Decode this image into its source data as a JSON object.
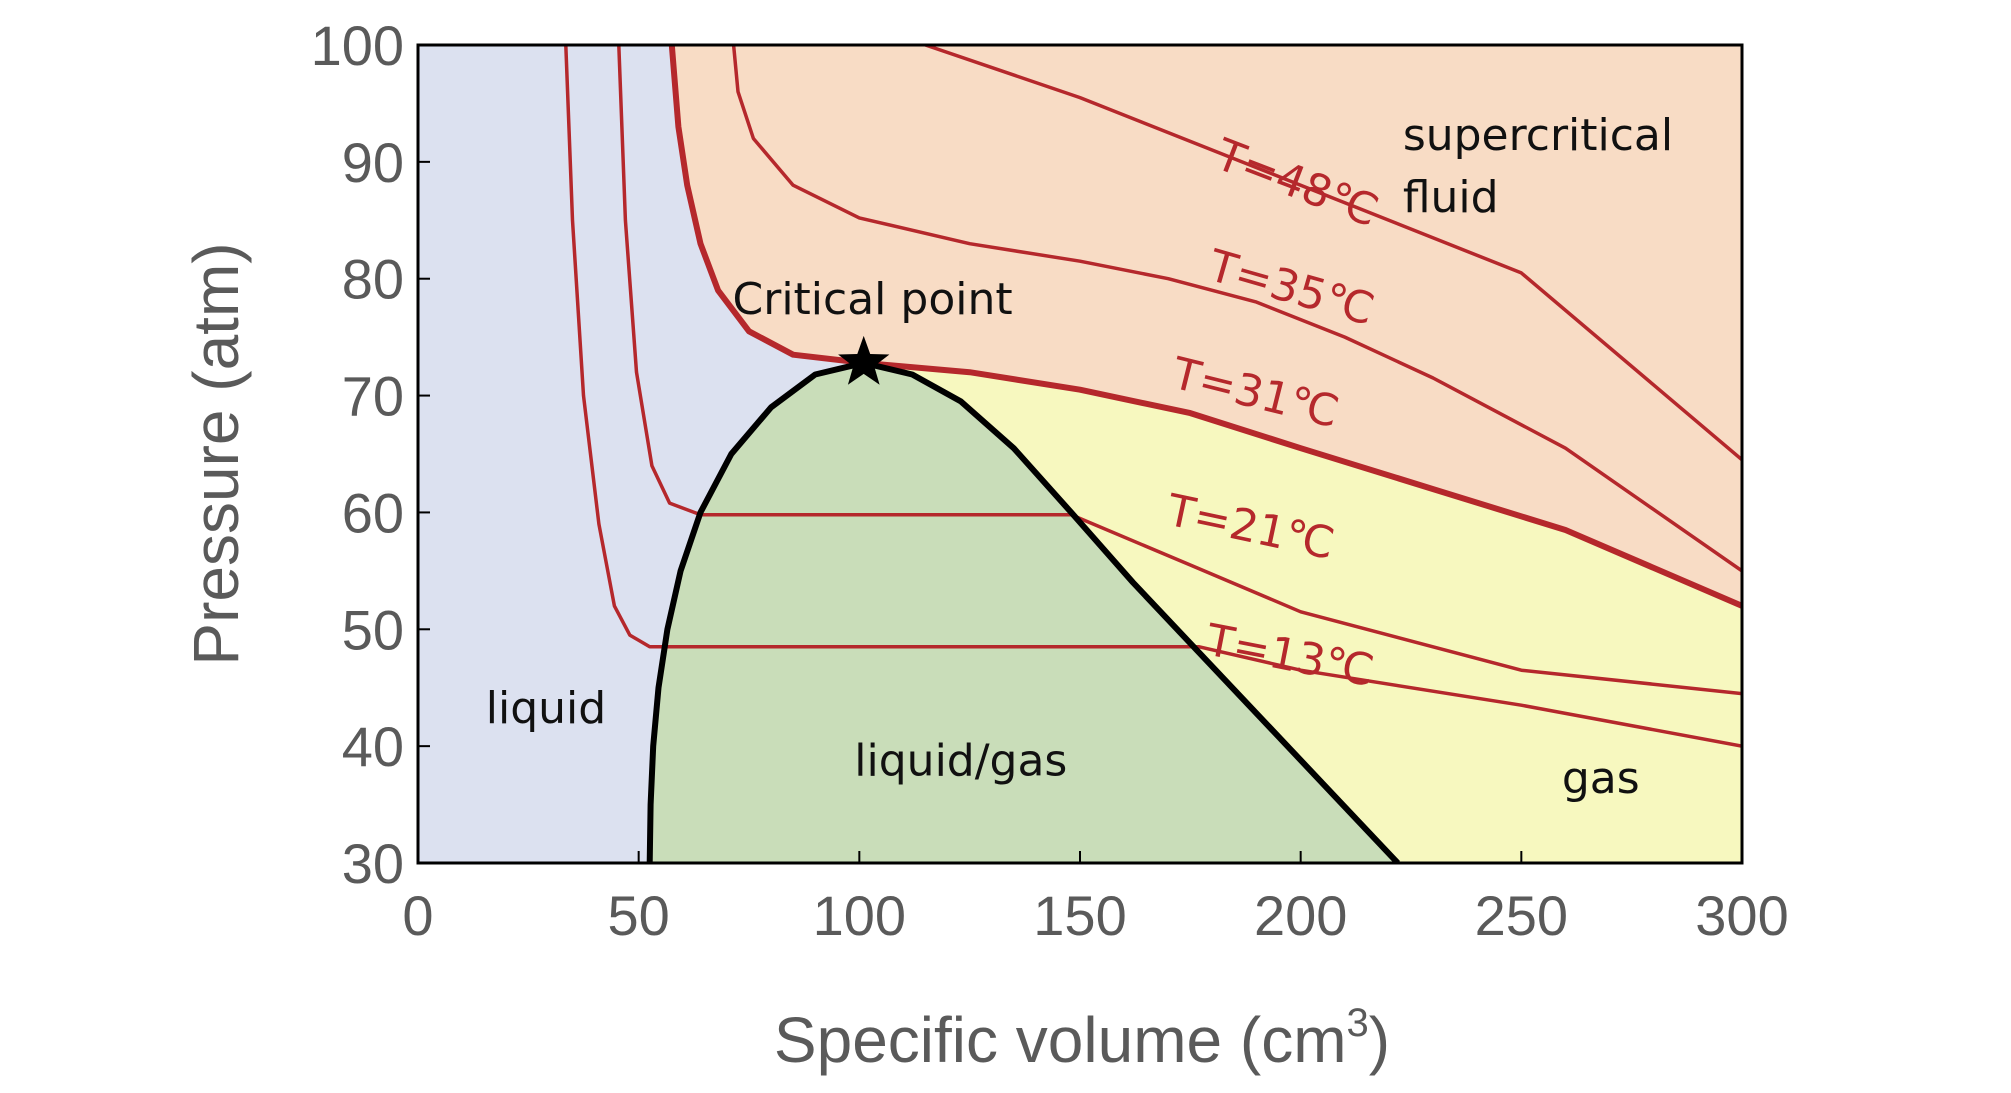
{
  "chart_data": {
    "type": "line",
    "title": "",
    "xlabel": "Specific volume (cm",
    "xlabel_sup": "3",
    "xlabel_close": ")",
    "ylabel": "Pressure (atm)",
    "xlim": [
      0,
      300
    ],
    "ylim": [
      30,
      100
    ],
    "x_ticks": [
      0,
      50,
      100,
      150,
      200,
      250,
      300
    ],
    "y_ticks": [
      30,
      40,
      50,
      60,
      70,
      80,
      90,
      100
    ],
    "grid": false,
    "legend": "none",
    "colors": {
      "liquid": "#dce1f0",
      "supercritical": "#f8dcc5",
      "gas": "#f7f8bf",
      "liquid_gas": "#c9ddb9",
      "isotherm": "#b5282c",
      "coexistence": "#000000"
    },
    "regions": [
      {
        "name": "liquid",
        "label": "liquid",
        "label_at": [
          29,
          42
        ]
      },
      {
        "name": "liquid_gas",
        "label": "liquid/gas",
        "label_at": [
          123,
          37.5
        ]
      },
      {
        "name": "gas",
        "label": "gas",
        "label_at": [
          268,
          36
        ]
      },
      {
        "name": "supercritical",
        "label": "supercritical",
        "label2": "fluid",
        "label_at": [
          256,
          91
        ]
      }
    ],
    "critical_point": {
      "x": 101,
      "y": 72.8,
      "label": "Critical point",
      "marker": "star",
      "label_at": [
        103,
        77
      ]
    },
    "coexistence_curve": [
      [
        52.5,
        30
      ],
      [
        52.7,
        35
      ],
      [
        53.3,
        40
      ],
      [
        54.5,
        45
      ],
      [
        56.5,
        50
      ],
      [
        59.5,
        55
      ],
      [
        64,
        60
      ],
      [
        71,
        65
      ],
      [
        80,
        69
      ],
      [
        90,
        71.8
      ],
      [
        101,
        72.8
      ],
      [
        112,
        71.8
      ],
      [
        123,
        69.5
      ],
      [
        135,
        65.5
      ],
      [
        148,
        60
      ],
      [
        162,
        54
      ],
      [
        177,
        48
      ],
      [
        192,
        42
      ],
      [
        207,
        36
      ],
      [
        222,
        30
      ]
    ],
    "series": [
      {
        "name": "T=48℃",
        "label_at": [
          198,
          87
        ],
        "label_rotation": 21,
        "values": [
          [
            115,
            100
          ],
          [
            150,
            95.5
          ],
          [
            200,
            88
          ],
          [
            250,
            80.5
          ],
          [
            300,
            64.5
          ]
        ]
      },
      {
        "name": "T=35℃",
        "label_at": [
          197,
          78
        ],
        "label_rotation": 16,
        "values": [
          [
            71.5,
            100
          ],
          [
            72.5,
            96
          ],
          [
            76,
            92
          ],
          [
            85,
            88
          ],
          [
            100,
            85.2
          ],
          [
            125,
            83
          ],
          [
            150,
            81.5
          ],
          [
            170,
            80
          ],
          [
            190,
            78
          ],
          [
            210,
            75
          ],
          [
            230,
            71.5
          ],
          [
            260,
            65.5
          ],
          [
            300,
            55
          ]
        ]
      },
      {
        "name": "T=31℃",
        "label_at": [
          189,
          69
        ],
        "label_rotation": 14,
        "values": [
          [
            57.5,
            100
          ],
          [
            59,
            93
          ],
          [
            61,
            88
          ],
          [
            64,
            83
          ],
          [
            68,
            79
          ],
          [
            75,
            75.5
          ],
          [
            85,
            73.5
          ],
          [
            101,
            72.8
          ],
          [
            125,
            72
          ],
          [
            150,
            70.5
          ],
          [
            175,
            68.5
          ],
          [
            200,
            65.5
          ],
          [
            230,
            62
          ],
          [
            260,
            58.5
          ],
          [
            300,
            52
          ]
        ]
      },
      {
        "name": "T=21℃",
        "label_at": [
          188,
          57.5
        ],
        "label_rotation": 12,
        "values": [
          [
            45.5,
            100
          ],
          [
            47,
            85
          ],
          [
            49.5,
            72
          ],
          [
            53,
            64
          ],
          [
            57,
            60.8
          ],
          [
            64,
            59.8
          ],
          [
            148,
            59.8
          ],
          [
            175,
            55.5
          ],
          [
            200,
            51.5
          ],
          [
            250,
            46.5
          ],
          [
            300,
            44.5
          ]
        ]
      },
      {
        "name": "T=13℃",
        "label_at": [
          197,
          46.5
        ],
        "label_rotation": 11,
        "values": [
          [
            33.5,
            100
          ],
          [
            35,
            85
          ],
          [
            37.5,
            70
          ],
          [
            41,
            59
          ],
          [
            44.5,
            52
          ],
          [
            48,
            49.5
          ],
          [
            52.5,
            48.5
          ],
          [
            177,
            48.5
          ],
          [
            200,
            46.5
          ],
          [
            250,
            43.5
          ],
          [
            300,
            40
          ]
        ]
      }
    ]
  }
}
